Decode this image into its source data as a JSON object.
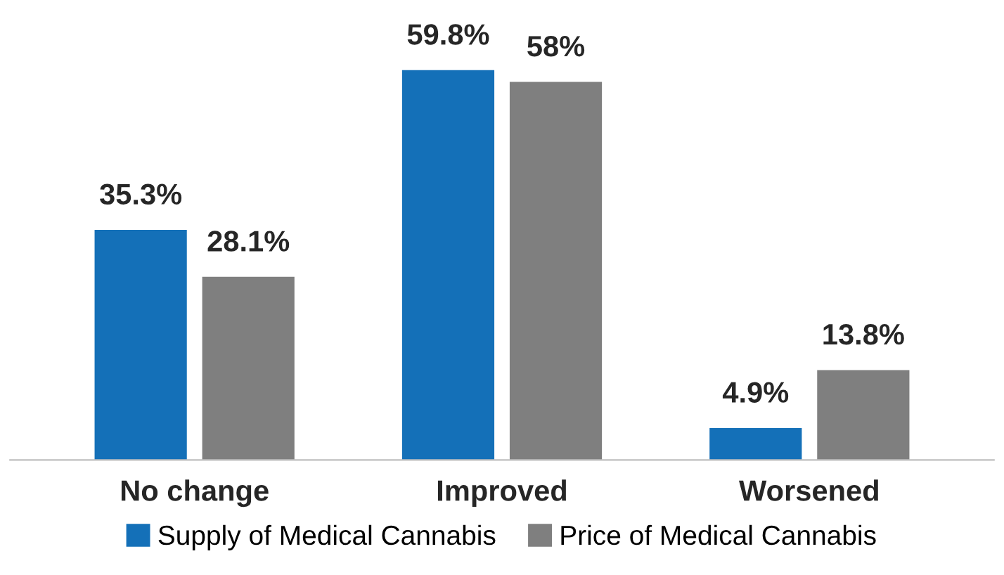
{
  "chart_data": {
    "type": "bar",
    "categories": [
      "No change",
      "Improved",
      "Worsened"
    ],
    "series": [
      {
        "name": "Supply of Medical Cannabis",
        "color": "#1470b8",
        "values": [
          35.3,
          59.8,
          4.9
        ],
        "value_labels": [
          "35.3%",
          "59.8%",
          "4.9%"
        ]
      },
      {
        "name": "Price of Medical Cannabis",
        "color": "#7f7f7f",
        "values": [
          28.1,
          58,
          13.8
        ],
        "value_labels": [
          "28.1%",
          "58%",
          "13.8%"
        ]
      }
    ],
    "legend": "bottom"
  }
}
